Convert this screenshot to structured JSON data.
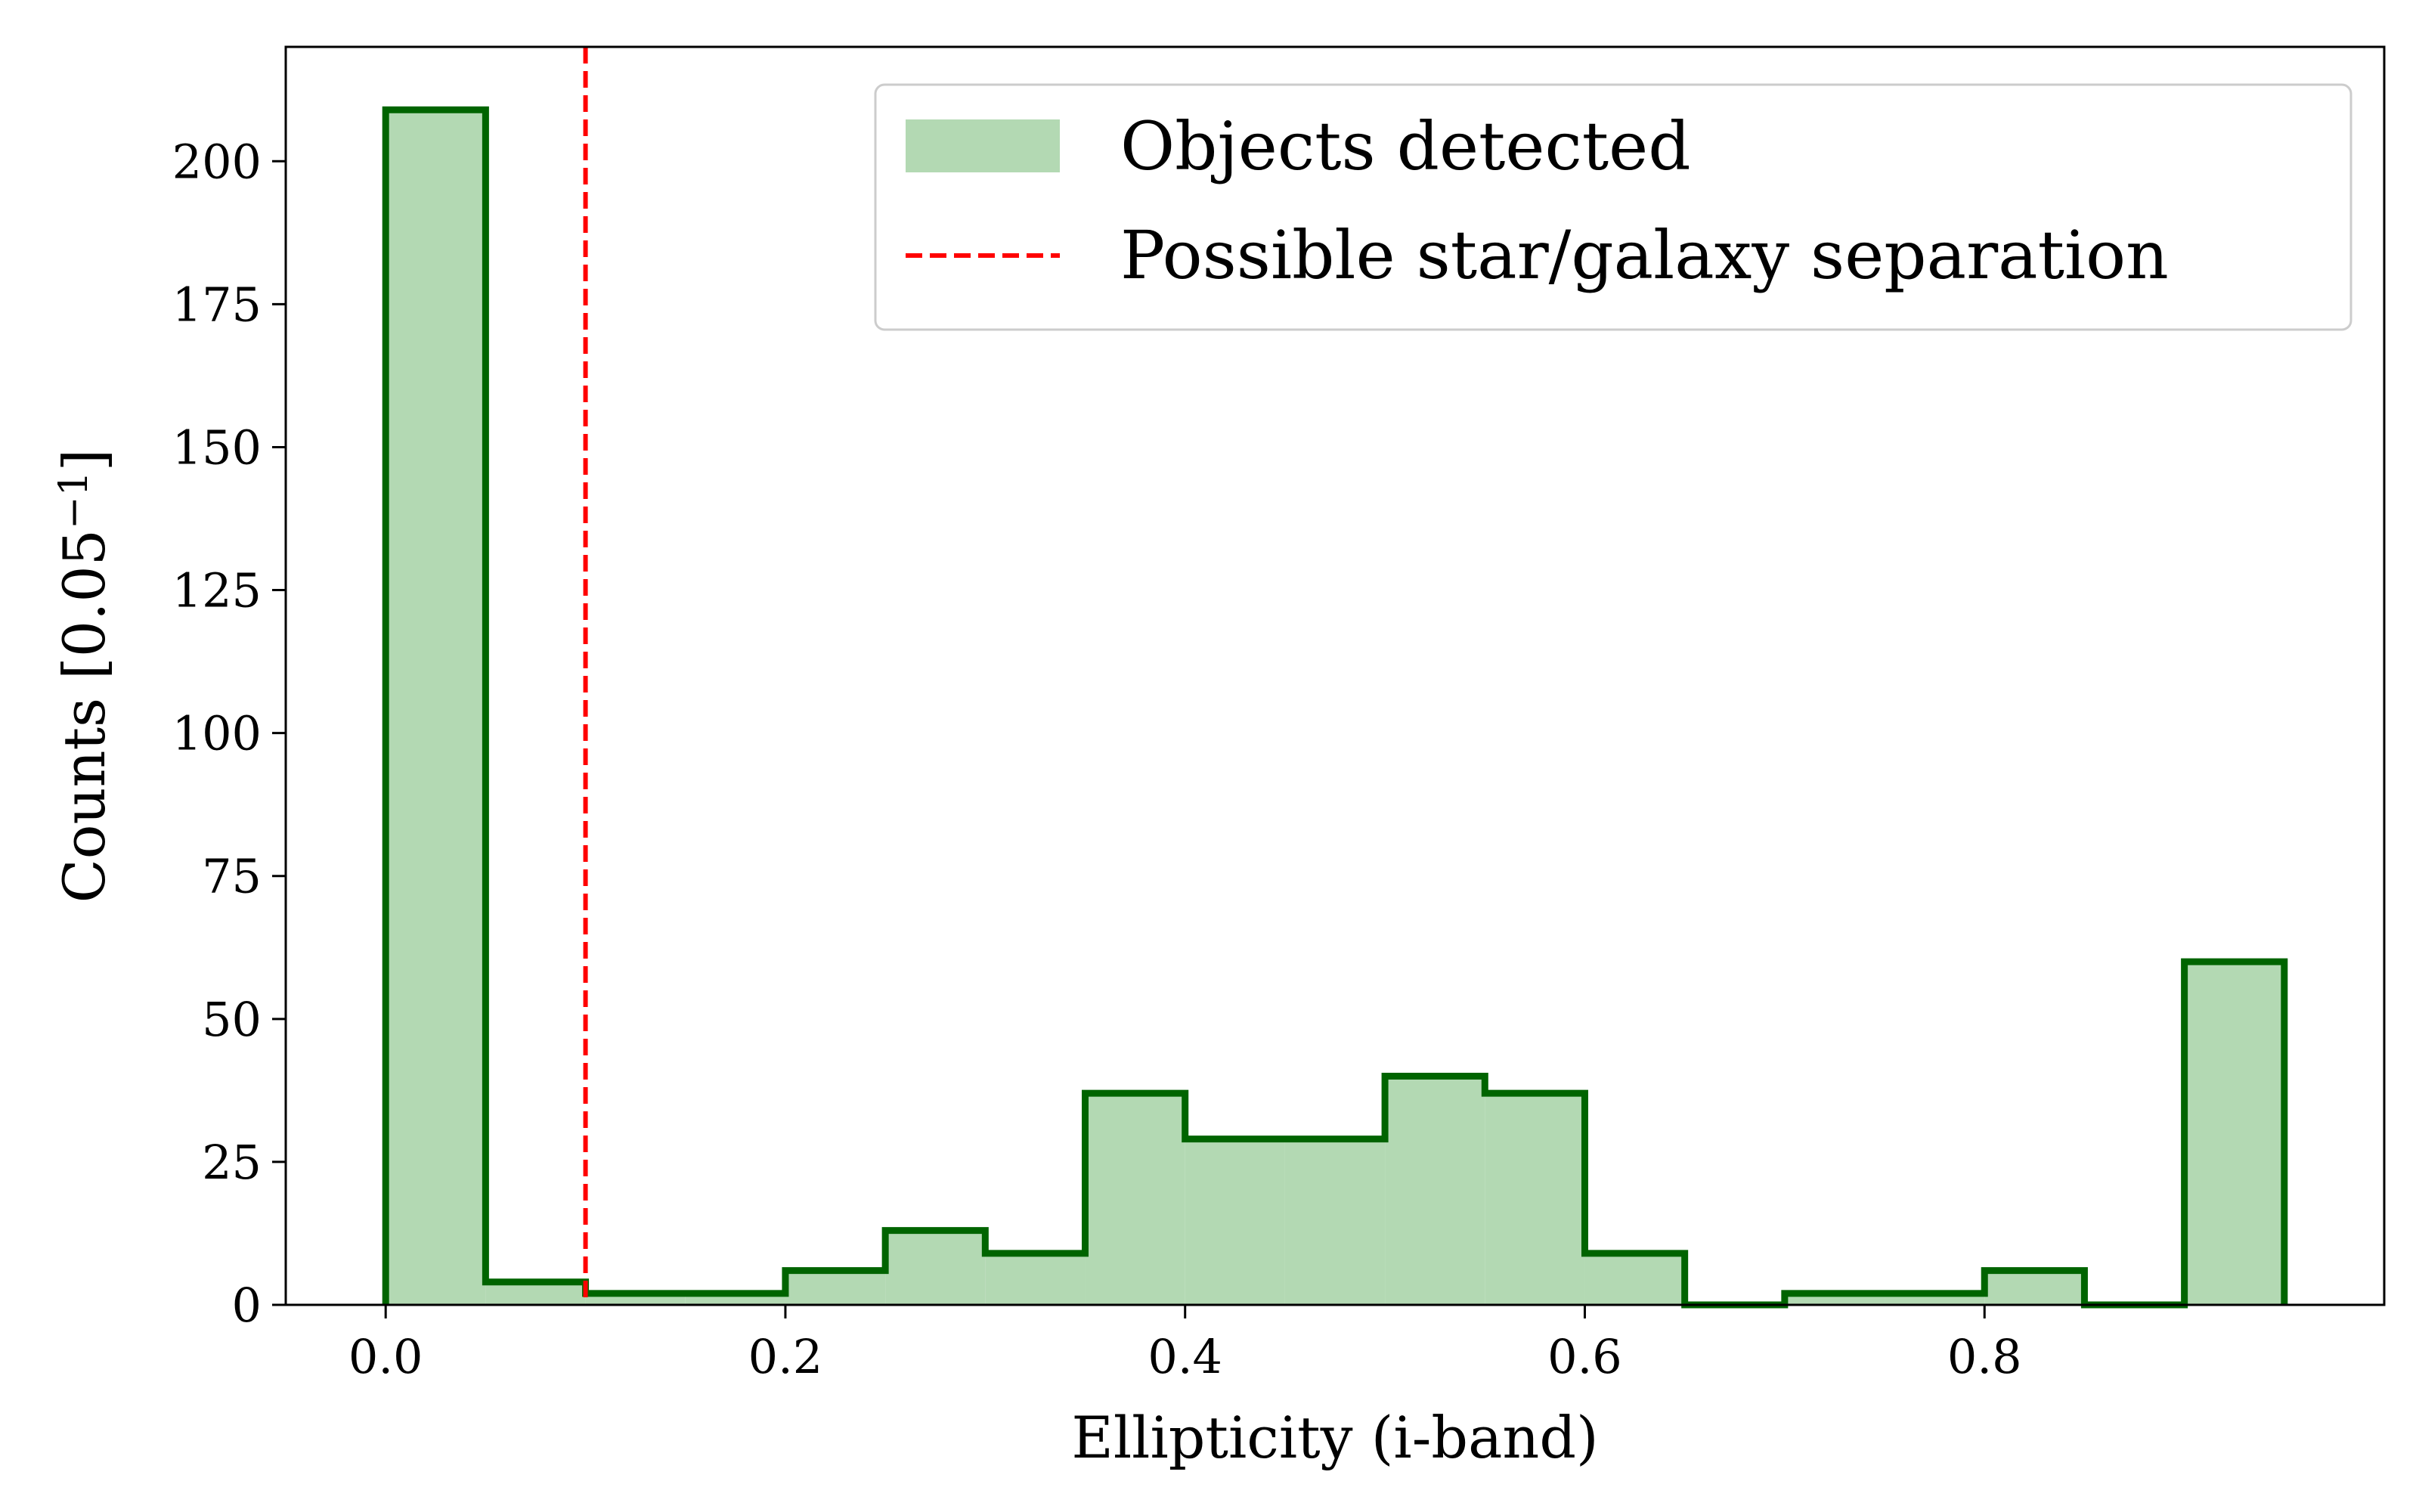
{
  "chart_data": {
    "type": "histogram",
    "xlabel": "Ellipticity (i-band)",
    "ylabel_main": "Counts [0.05",
    "ylabel_sup": "−1",
    "ylabel_close": "]",
    "xlim": [
      -0.05,
      1.0
    ],
    "ylim": [
      0,
      220
    ],
    "xticks": [
      0.0,
      0.2,
      0.4,
      0.6,
      0.8
    ],
    "xtick_labels": [
      "0.0",
      "0.2",
      "0.4",
      "0.6",
      "0.8"
    ],
    "yticks": [
      0,
      25,
      50,
      75,
      100,
      125,
      150,
      175,
      200
    ],
    "ytick_labels": [
      "0",
      "25",
      "50",
      "75",
      "100",
      "125",
      "150",
      "175",
      "200"
    ],
    "bin_edges": [
      0.0,
      0.05,
      0.1,
      0.15,
      0.2,
      0.25,
      0.3,
      0.35,
      0.4,
      0.45,
      0.5,
      0.55,
      0.6,
      0.65,
      0.7,
      0.75,
      0.8,
      0.85,
      0.9,
      0.95
    ],
    "counts": [
      209,
      4,
      2,
      2,
      6,
      13,
      9,
      37,
      29,
      29,
      40,
      37,
      9,
      0,
      2,
      2,
      6,
      0,
      60
    ],
    "fill_color": "#b3d9b3",
    "edge_color": "#006400",
    "separation_x": 0.1,
    "separation_color": "#ff0000",
    "legend": {
      "position": "upper-right",
      "entries": [
        {
          "label": "Objects detected",
          "kind": "patch",
          "color": "#b3d9b3"
        },
        {
          "label": "Possible star/galaxy separation",
          "kind": "dashed-line",
          "color": "#ff0000"
        }
      ]
    },
    "grid": false
  }
}
